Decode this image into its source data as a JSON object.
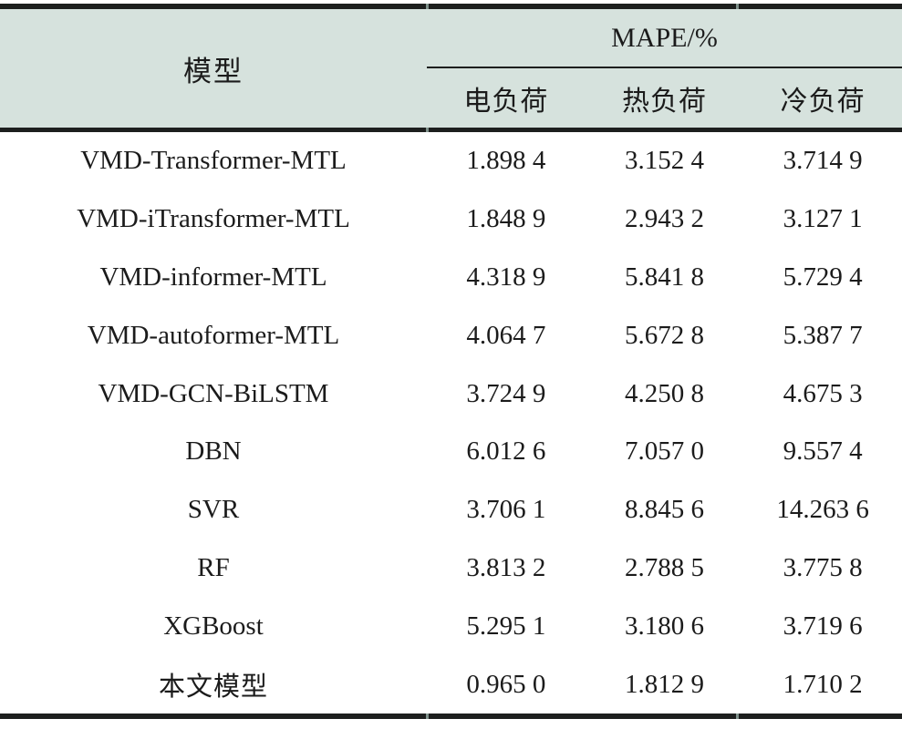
{
  "table": {
    "header": {
      "model_col": "模型",
      "group_label": "MAPE/%",
      "sub_columns": [
        "电负荷",
        "热负荷",
        "冷负荷"
      ]
    },
    "rows": [
      {
        "model": "VMD-Transformer-MTL",
        "values": [
          "1.898 4",
          "3.152 4",
          "3.714 9"
        ]
      },
      {
        "model": "VMD-iTransformer-MTL",
        "values": [
          "1.848 9",
          "2.943 2",
          "3.127 1"
        ]
      },
      {
        "model": "VMD-informer-MTL",
        "values": [
          "4.318 9",
          "5.841 8",
          "5.729 4"
        ]
      },
      {
        "model": "VMD-autoformer-MTL",
        "values": [
          "4.064 7",
          "5.672 8",
          "5.387 7"
        ]
      },
      {
        "model": "VMD-GCN-BiLSTM",
        "values": [
          "3.724 9",
          "4.250 8",
          "4.675 3"
        ]
      },
      {
        "model": "DBN",
        "values": [
          "6.012 6",
          "7.057 0",
          "9.557 4"
        ]
      },
      {
        "model": "SVR",
        "values": [
          "3.706 1",
          "8.845 6",
          "14.263 6"
        ]
      },
      {
        "model": "RF",
        "values": [
          "3.813 2",
          "2.788 5",
          "3.775 8"
        ]
      },
      {
        "model": "XGBoost",
        "values": [
          "5.295 1",
          "3.180 6",
          "3.719 6"
        ]
      },
      {
        "model": "本文模型",
        "values": [
          "0.965 0",
          "1.812 9",
          "1.710 2"
        ]
      }
    ]
  },
  "colors": {
    "header_bg": "#d6e2dd",
    "rule": "#1d1f1e",
    "text": "#1b1b1b",
    "tick": "#7f918b"
  }
}
